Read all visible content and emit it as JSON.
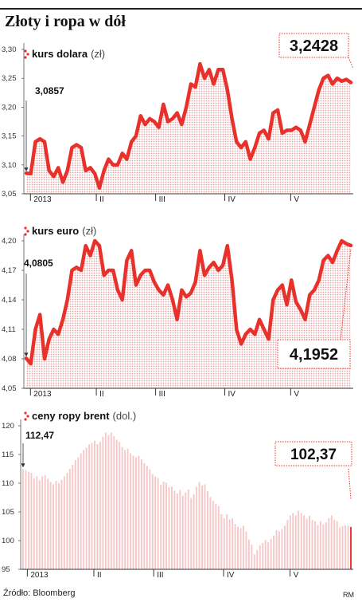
{
  "title": "Złoty i ropa w dół",
  "source": "Źródło: Bloomberg",
  "author": "RM",
  "colors": {
    "accent": "#e8312b",
    "fill": "#f6c8c8",
    "axis": "#333333"
  },
  "chart_data": [
    {
      "type": "line",
      "label_name": "kurs dolara",
      "label_unit": "(zł)",
      "ylim": [
        3.05,
        3.3
      ],
      "yticks": [
        "3,05",
        "3,10",
        "3,15",
        "3,20",
        "3,25",
        "3,30"
      ],
      "x_tick_labels": [
        "2013",
        "II",
        "III",
        "IV",
        "V"
      ],
      "first_label": "3,0857",
      "last_label": "3,2428",
      "values": [
        3.0857,
        3.085,
        3.14,
        3.145,
        3.14,
        3.09,
        3.08,
        3.095,
        3.07,
        3.09,
        3.13,
        3.135,
        3.13,
        3.09,
        3.095,
        3.085,
        3.06,
        3.09,
        3.11,
        3.1,
        3.1,
        3.12,
        3.11,
        3.14,
        3.15,
        3.185,
        3.17,
        3.18,
        3.175,
        3.165,
        3.205,
        3.175,
        3.18,
        3.19,
        3.17,
        3.2,
        3.24,
        3.235,
        3.275,
        3.25,
        3.265,
        3.24,
        3.265,
        3.265,
        3.23,
        3.18,
        3.14,
        3.13,
        3.14,
        3.11,
        3.13,
        3.155,
        3.16,
        3.145,
        3.19,
        3.195,
        3.155,
        3.16,
        3.16,
        3.165,
        3.16,
        3.14,
        3.17,
        3.2,
        3.23,
        3.25,
        3.255,
        3.24,
        3.25,
        3.245,
        3.248,
        3.2428
      ]
    },
    {
      "type": "line",
      "label_name": "kurs euro",
      "label_unit": "(zł)",
      "ylim": [
        4.05,
        4.2
      ],
      "yticks": [
        "4,05",
        "4,08",
        "4,11",
        "4,14",
        "4,17",
        "4,20"
      ],
      "x_tick_labels": [
        "2013",
        "II",
        "III",
        "IV",
        "V"
      ],
      "first_label": "4,0805",
      "last_label": "4,1952",
      "values": [
        4.0805,
        4.075,
        4.11,
        4.125,
        4.08,
        4.1,
        4.11,
        4.105,
        4.12,
        4.14,
        4.17,
        4.173,
        4.17,
        4.195,
        4.185,
        4.2,
        4.195,
        4.165,
        4.17,
        4.17,
        4.15,
        4.14,
        4.18,
        4.19,
        4.155,
        4.165,
        4.17,
        4.17,
        4.158,
        4.15,
        4.145,
        4.155,
        4.14,
        4.12,
        4.15,
        4.143,
        4.147,
        4.158,
        4.19,
        4.165,
        4.173,
        4.178,
        4.17,
        4.175,
        4.195,
        4.16,
        4.11,
        4.095,
        4.105,
        4.11,
        4.105,
        4.12,
        4.11,
        4.1,
        4.14,
        4.15,
        4.155,
        4.135,
        4.16,
        4.138,
        4.13,
        4.12,
        4.145,
        4.15,
        4.16,
        4.18,
        4.185,
        4.178,
        4.19,
        4.2,
        4.197,
        4.1952
      ]
    },
    {
      "type": "bar",
      "label_name": "ceny ropy brent",
      "label_unit": "(dol.)",
      "ylim": [
        95,
        120
      ],
      "yticks": [
        "95",
        "100",
        "105",
        "110",
        "115",
        "120"
      ],
      "x_tick_labels": [
        "2013",
        "II",
        "III",
        "IV",
        "V"
      ],
      "first_label": "112,47",
      "last_label": "102,37",
      "values": [
        112.47,
        112.3,
        112.0,
        111.8,
        110.8,
        111.2,
        110.5,
        111.2,
        111.4,
        110.8,
        110.2,
        109.8,
        110.4,
        110.0,
        110.6,
        111.2,
        111.8,
        112.5,
        113.2,
        114.0,
        114.5,
        115.2,
        115.8,
        116.2,
        116.8,
        117.0,
        117.4,
        116.8,
        117.2,
        118.1,
        118.8,
        118.4,
        118.8,
        118.2,
        117.6,
        117.2,
        116.3,
        115.8,
        116.0,
        115.2,
        114.8,
        114.5,
        114.8,
        114.2,
        113.5,
        113.0,
        112.4,
        111.6,
        111.2,
        110.9,
        109.7,
        110.3,
        110.1,
        109.3,
        109.4,
        108.7,
        108.2,
        108.8,
        107.8,
        108.4,
        108.9,
        107.4,
        108.1,
        109.4,
        110.2,
        109.6,
        109.8,
        108.6,
        107.6,
        106.9,
        106.4,
        106.0,
        104.6,
        103.9,
        104.6,
        103.7,
        103.9,
        102.9,
        102.4,
        102.2,
        102.6,
        101.6,
        100.2,
        99.3,
        97.6,
        98.4,
        99.2,
        99.6,
        100.1,
        99.7,
        100.3,
        100.9,
        101.8,
        101.6,
        102.0,
        102.6,
        103.6,
        104.4,
        104.8,
        104.4,
        105.2,
        104.8,
        104.4,
        103.8,
        104.3,
        103.6,
        103.4,
        102.7,
        103.4,
        102.8,
        103.2,
        103.9,
        104.4,
        103.6,
        103.4,
        102.3,
        102.5,
        102.7,
        102.6,
        102.37
      ]
    }
  ]
}
